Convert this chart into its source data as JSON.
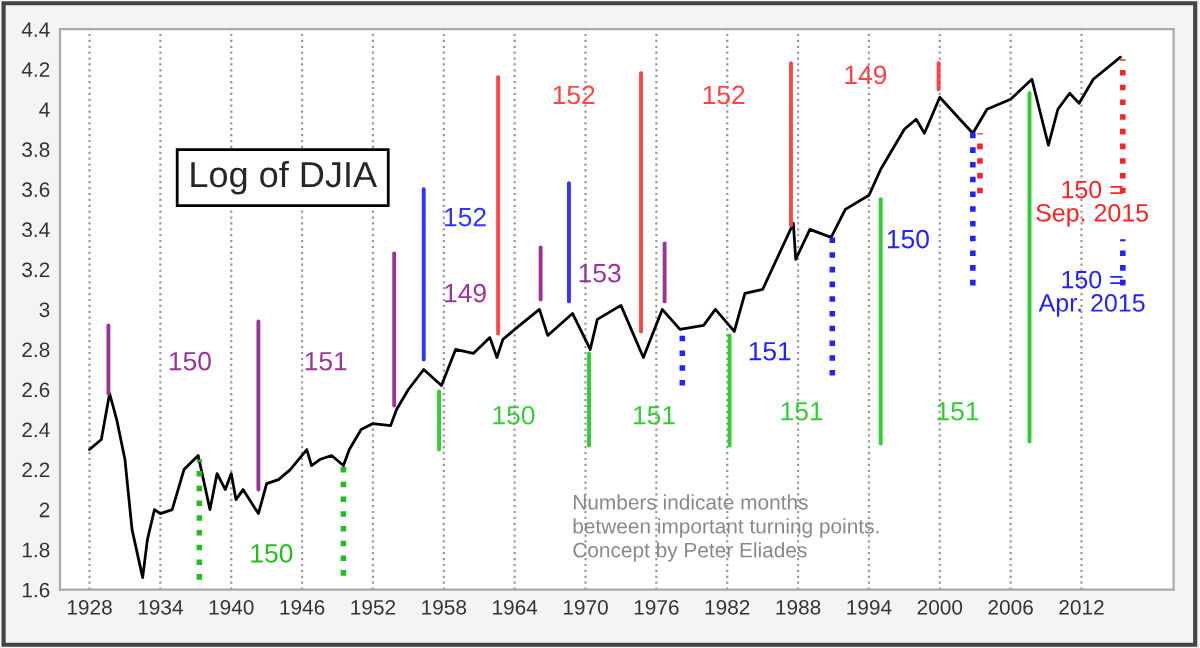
{
  "chart_data": {
    "type": "line",
    "title": "Log of DJIA",
    "xlim": [
      1925.5,
      2019.8
    ],
    "xticks": [
      1928,
      1934,
      1940,
      1946,
      1952,
      1958,
      1964,
      1970,
      1976,
      1982,
      1988,
      1994,
      2000,
      2006,
      2012
    ],
    "ylim": [
      1.6,
      4.4
    ],
    "yticks": [
      1.6,
      1.8,
      2,
      2.2,
      2.4,
      2.6,
      2.8,
      3,
      3.2,
      3.4,
      3.6,
      3.8,
      4,
      4.2,
      4.4
    ],
    "grid": "x",
    "legend": false,
    "marker": "none",
    "series": [
      {
        "color": "#000000",
        "line_style": "solid",
        "x": [
          1928.0,
          1929.0,
          1929.7,
          1930.3,
          1931.0,
          1931.6,
          1932.5,
          1932.9,
          1933.5,
          1934.0,
          1935.0,
          1936.0,
          1937.2,
          1938.2,
          1938.8,
          1939.5,
          1940.0,
          1940.4,
          1941.0,
          1942.3,
          1943.0,
          1944.0,
          1945.0,
          1946.4,
          1946.8,
          1947.5,
          1948.5,
          1949.5,
          1950.0,
          1951.0,
          1952.0,
          1953.5,
          1954.0,
          1955.0,
          1956.3,
          1957.8,
          1959.0,
          1960.5,
          1961.9,
          1962.5,
          1963.0,
          1964.0,
          1966.1,
          1966.8,
          1968.9,
          1970.4,
          1971.0,
          1973.0,
          1974.9,
          1976.5,
          1978.0,
          1980.0,
          1981.0,
          1982.6,
          1983.5,
          1985.0,
          1987.6,
          1987.8,
          1989.0,
          1990.8,
          1992.0,
          1994.0,
          1995.0,
          1996.0,
          1997.0,
          1998.0,
          1998.7,
          2000.0,
          2001.7,
          2002.8,
          2004.0,
          2006.0,
          2007.8,
          2009.2,
          2010.0,
          2011.0,
          2011.8,
          2013.0,
          2015.3
        ],
        "values": [
          2.3,
          2.35,
          2.58,
          2.45,
          2.25,
          1.9,
          1.66,
          1.85,
          2.0,
          1.98,
          2.0,
          2.2,
          2.27,
          2.0,
          2.18,
          2.1,
          2.18,
          2.05,
          2.1,
          1.98,
          2.13,
          2.15,
          2.2,
          2.3,
          2.22,
          2.25,
          2.27,
          2.22,
          2.3,
          2.4,
          2.43,
          2.42,
          2.5,
          2.6,
          2.7,
          2.62,
          2.8,
          2.78,
          2.86,
          2.76,
          2.85,
          2.9,
          3.0,
          2.87,
          2.98,
          2.8,
          2.95,
          3.02,
          2.76,
          3.0,
          2.9,
          2.92,
          3.0,
          2.89,
          3.08,
          3.1,
          3.43,
          3.25,
          3.4,
          3.36,
          3.5,
          3.57,
          3.7,
          3.8,
          3.9,
          3.95,
          3.88,
          4.06,
          3.95,
          3.88,
          4.0,
          4.05,
          4.15,
          3.82,
          4.0,
          4.08,
          4.03,
          4.15,
          4.26
        ]
      },
      {
        "color": "#993399",
        "line_style": "solid",
        "x": [
          1929.6,
          1929.6
        ],
        "values": [
          2.58,
          2.92
        ]
      },
      {
        "color": "#993399",
        "line_style": "solid",
        "x": [
          1942.3,
          1942.3
        ],
        "values": [
          2.1,
          2.94
        ]
      },
      {
        "color": "#993399",
        "line_style": "solid",
        "x": [
          1953.8,
          1953.8
        ],
        "values": [
          2.52,
          3.28
        ]
      },
      {
        "color": "#993399",
        "line_style": "solid",
        "x": [
          1966.2,
          1966.2
        ],
        "values": [
          3.05,
          3.31
        ]
      },
      {
        "color": "#993399",
        "line_style": "solid",
        "x": [
          1976.7,
          1976.7
        ],
        "values": [
          3.04,
          3.33
        ]
      },
      {
        "color": "#3333ff",
        "line_style": "solid",
        "x": [
          1956.3,
          1956.3
        ],
        "values": [
          2.75,
          3.6
        ]
      },
      {
        "color": "#3333ff",
        "line_style": "solid",
        "x": [
          1968.6,
          1968.6
        ],
        "values": [
          3.04,
          3.63
        ]
      },
      {
        "color": "#ff4444",
        "line_style": "solid",
        "x": [
          1962.6,
          1962.6
        ],
        "values": [
          2.88,
          4.16
        ]
      },
      {
        "color": "#ff4444",
        "line_style": "solid",
        "x": [
          1974.7,
          1974.7
        ],
        "values": [
          2.89,
          4.18
        ]
      },
      {
        "color": "#ff4444",
        "line_style": "solid",
        "x": [
          1987.4,
          1987.4
        ],
        "values": [
          3.42,
          4.23
        ]
      },
      {
        "color": "#ff4444",
        "line_style": "solid",
        "x": [
          1999.9,
          1999.9
        ],
        "values": [
          4.1,
          4.23
        ]
      },
      {
        "color": "#ff2222",
        "line_style": "dotted",
        "x": [
          2003.4,
          2003.4
        ],
        "values": [
          3.58,
          3.88
        ]
      },
      {
        "color": "#ff2222",
        "line_style": "dotted",
        "x": [
          2015.5,
          2015.5
        ],
        "values": [
          3.58,
          4.25
        ]
      },
      {
        "color": "#2222ff",
        "line_style": "dotted",
        "x": [
          1978.2,
          1978.2
        ],
        "values": [
          2.62,
          2.88
        ]
      },
      {
        "color": "#2222ff",
        "line_style": "dotted",
        "x": [
          1990.9,
          1990.9
        ],
        "values": [
          2.67,
          3.38
        ]
      },
      {
        "color": "#2222ff",
        "line_style": "dotted",
        "x": [
          2002.8,
          2002.8
        ],
        "values": [
          3.12,
          3.9
        ]
      },
      {
        "color": "#2222ff",
        "line_style": "dotted",
        "x": [
          2015.5,
          2015.5
        ],
        "values": [
          3.12,
          3.35
        ]
      },
      {
        "color": "#33cc33",
        "line_style": "solid",
        "x": [
          1957.6,
          1957.6
        ],
        "values": [
          2.3,
          2.59
        ]
      },
      {
        "color": "#33cc33",
        "line_style": "solid",
        "x": [
          1970.3,
          1970.3
        ],
        "values": [
          2.32,
          2.78
        ]
      },
      {
        "color": "#33cc33",
        "line_style": "solid",
        "x": [
          1982.2,
          1982.2
        ],
        "values": [
          2.32,
          2.87
        ]
      },
      {
        "color": "#33cc33",
        "line_style": "solid",
        "x": [
          1995.0,
          1995.0
        ],
        "values": [
          2.33,
          3.55
        ]
      },
      {
        "color": "#33cc33",
        "line_style": "solid",
        "x": [
          2007.6,
          2007.6
        ],
        "values": [
          2.34,
          4.08
        ]
      },
      {
        "color": "#22bb22",
        "line_style": "dotted",
        "x": [
          1937.3,
          1937.3
        ],
        "values": [
          1.65,
          2.25
        ]
      },
      {
        "color": "#22bb22",
        "line_style": "dotted",
        "x": [
          1949.5,
          1949.5
        ],
        "values": [
          1.67,
          2.22
        ]
      }
    ],
    "annotations": [
      "150",
      "151",
      "149",
      "153",
      "152",
      "152",
      "152",
      "149",
      "150 =\nSep. 2015",
      "151",
      "150",
      "150 =\nApr. 2015",
      "150",
      "151",
      "151",
      "151",
      "150",
      "Numbers indicate months\nbetween important turning points.\nConcept by Peter Eliades"
    ]
  }
}
